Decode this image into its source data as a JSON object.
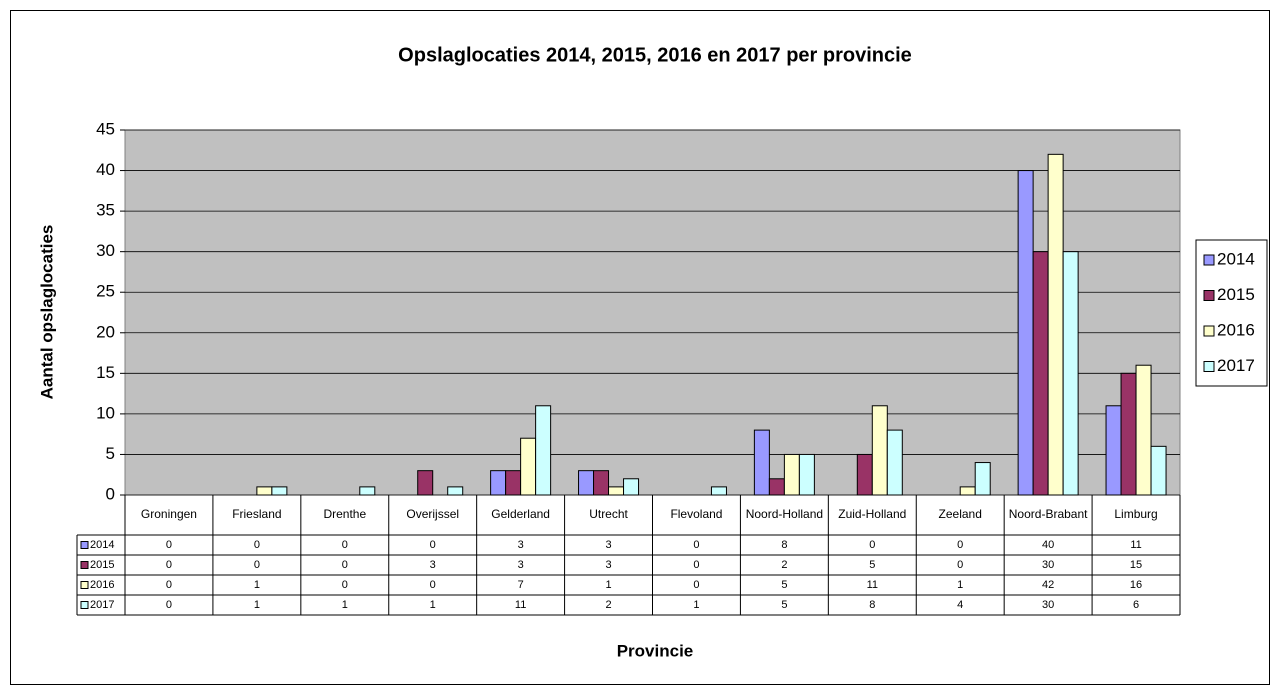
{
  "chart_data": {
    "type": "bar",
    "title": "Opslaglocaties 2014, 2015, 2016 en 2017 per provincie",
    "x_label": "Provincie",
    "y_label": "Aantal opslaglocaties",
    "categories": [
      "Groningen",
      "Friesland",
      "Drenthe",
      "Overijssel",
      "Gelderland",
      "Utrecht",
      "Flevoland",
      "Noord-Holland",
      "Zuid-Holland",
      "Zeeland",
      "Noord-Brabant",
      "Limburg"
    ],
    "series": [
      {
        "name": "2014",
        "color": "#9999ff",
        "values": [
          0,
          0,
          0,
          0,
          3,
          3,
          0,
          8,
          0,
          0,
          40,
          11
        ]
      },
      {
        "name": "2015",
        "color": "#993366",
        "values": [
          0,
          0,
          0,
          3,
          3,
          3,
          0,
          2,
          5,
          0,
          30,
          15
        ]
      },
      {
        "name": "2016",
        "color": "#ffffcc",
        "values": [
          0,
          1,
          0,
          0,
          7,
          1,
          0,
          5,
          11,
          1,
          42,
          16
        ]
      },
      {
        "name": "2017",
        "color": "#ccffff",
        "values": [
          0,
          1,
          1,
          1,
          11,
          2,
          1,
          5,
          8,
          4,
          30,
          6
        ]
      }
    ],
    "ylim": [
      0,
      45
    ],
    "yticks": [
      0,
      5,
      10,
      15,
      20,
      25,
      30,
      35,
      40,
      45
    ],
    "grid": true,
    "legend": "right",
    "data_table": true
  }
}
